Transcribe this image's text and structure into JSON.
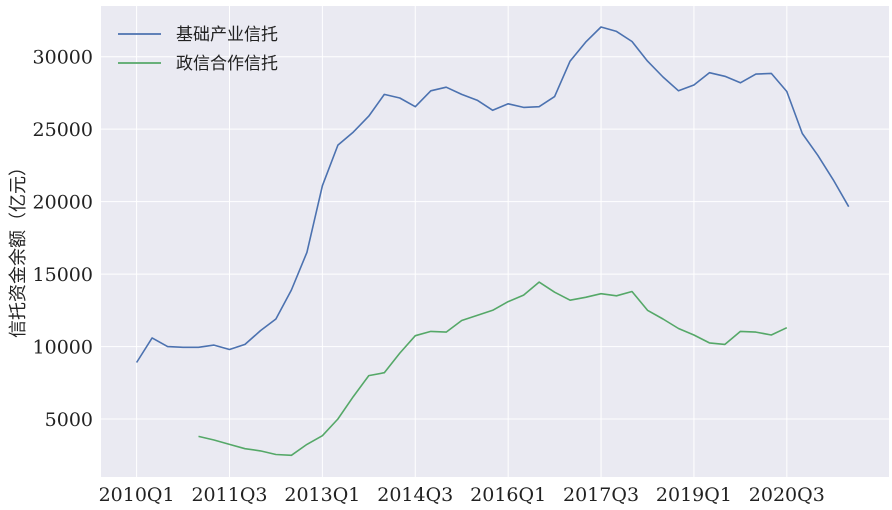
{
  "chart_data": {
    "type": "line",
    "ylabel": "信托资金余额（亿元）",
    "xlabel": "",
    "title": "",
    "grid": true,
    "legend_position": "top-left",
    "background": "#eaeaf2",
    "x_tick_labels": [
      "2010Q1",
      "2011Q3",
      "2013Q1",
      "2014Q3",
      "2016Q1",
      "2017Q3",
      "2019Q1",
      "2020Q3"
    ],
    "y_ticks": [
      5000,
      10000,
      15000,
      20000,
      25000,
      30000
    ],
    "ylim": [
      1000,
      33500
    ],
    "x_range_quarters": [
      -2.3,
      48.6
    ],
    "series": [
      {
        "name": "基础产业信托",
        "color": "#4c72b0",
        "start_quarter_label": "2010Q1",
        "values": [
          8900,
          10600,
          10000,
          9950,
          9950,
          10100,
          9800,
          10150,
          11100,
          11900,
          13900,
          16500,
          21100,
          23900,
          24800,
          25900,
          27400,
          27150,
          26550,
          27650,
          27900,
          27400,
          27000,
          26300,
          26750,
          26500,
          26550,
          27250,
          29700,
          31000,
          32050,
          31750,
          31050,
          29700,
          28600,
          27650,
          28050,
          28900,
          28650,
          28200,
          28800,
          28850,
          27600,
          24700,
          23200,
          21500,
          19650
        ]
      },
      {
        "name": "政信合作信托",
        "color": "#55a868",
        "start_quarter_label": "2011Q1",
        "values": [
          3800,
          3550,
          3250,
          2950,
          2800,
          2550,
          2500,
          3250,
          3850,
          5000,
          6550,
          8000,
          8200,
          9550,
          10750,
          11050,
          11000,
          11800,
          12150,
          12500,
          13100,
          13550,
          14450,
          13750,
          13200,
          13400,
          13650,
          13500,
          13800,
          12500,
          11900,
          11250,
          10800,
          10250,
          10150,
          11050,
          11000,
          10800,
          11300
        ]
      }
    ]
  }
}
